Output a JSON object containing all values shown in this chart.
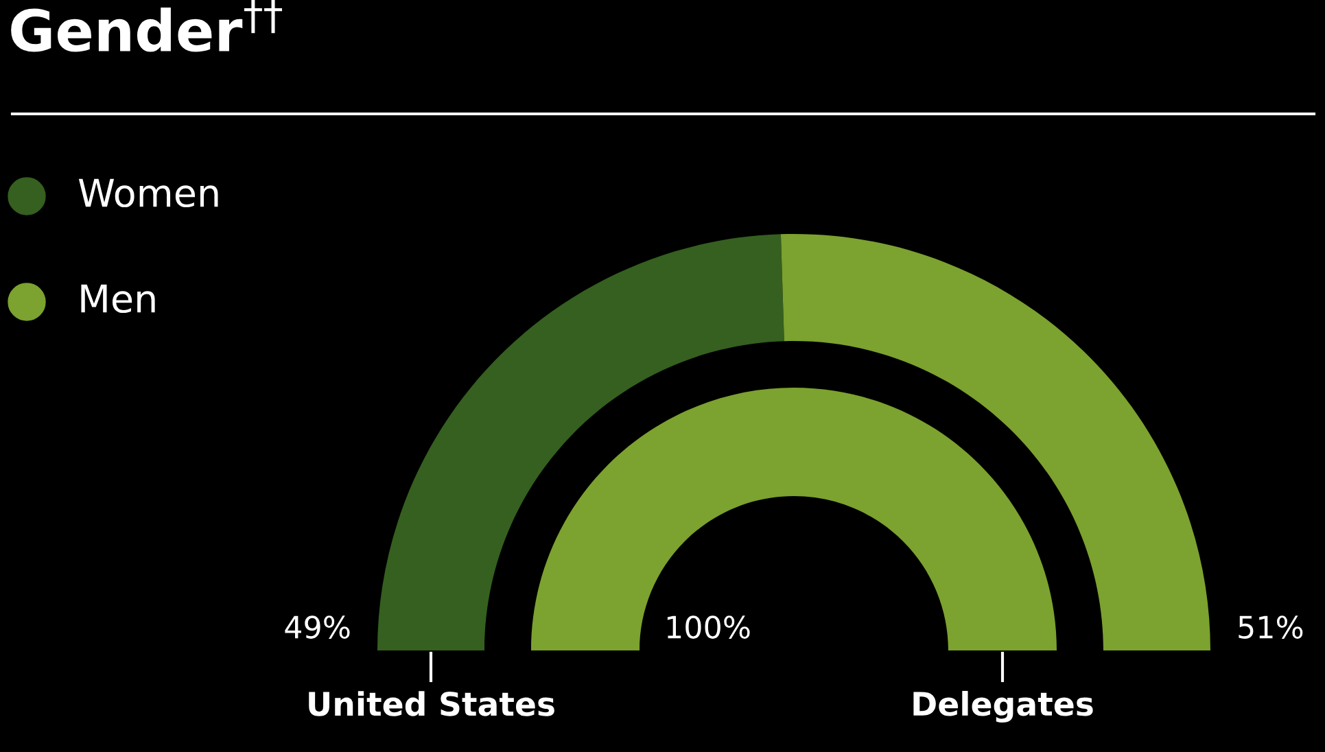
{
  "chart_data": {
    "type": "donut",
    "title": "Gender$^{††}$",
    "categories": [
      "Women",
      "Men"
    ],
    "colors": [
      "#356020",
      "#7ca22f"
    ],
    "legend": "top left",
    "series": [
      {
        "name": "United States",
        "values": [
          49,
          51
        ],
        "value_labels": [
          "49%",
          "51%"
        ]
      },
      {
        "name": "Delegates",
        "values": [
          0,
          100
        ],
        "value_labels": [
          null,
          "100%"
        ]
      }
    ]
  }
}
